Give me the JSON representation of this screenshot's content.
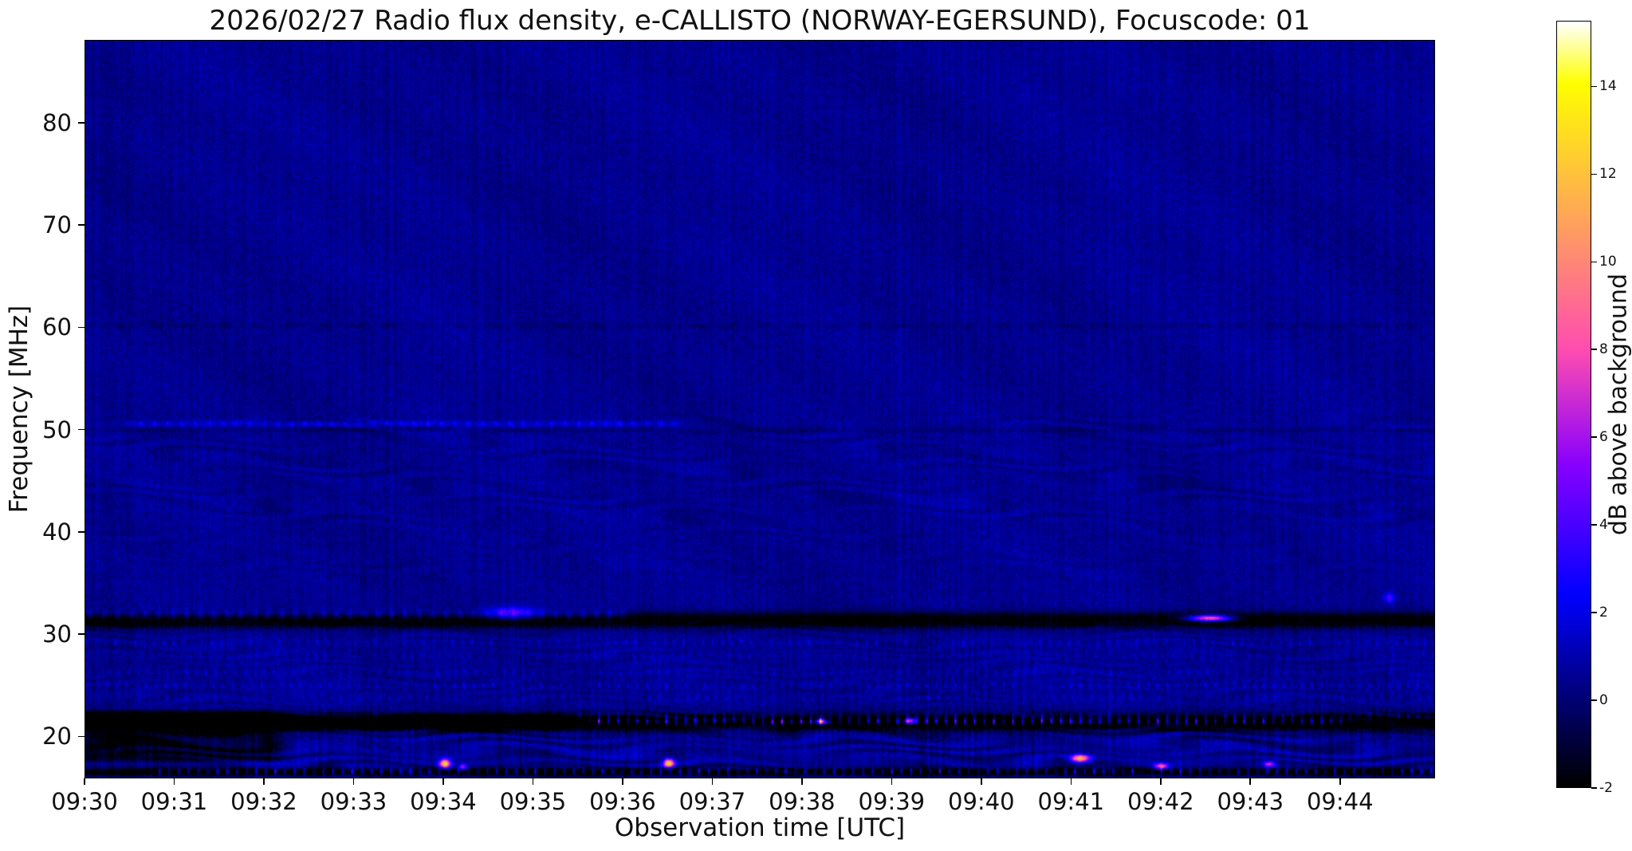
{
  "chart_data": {
    "type": "heatmap",
    "title": "2026/02/27  Radio flux density, e-CALLISTO (NORWAY-EGERSUND), Focuscode: 01",
    "xlabel": "Observation time [UTC]",
    "ylabel": "Frequency [MHz]",
    "x_ticks": [
      "09:30",
      "09:31",
      "09:32",
      "09:33",
      "09:34",
      "09:35",
      "09:36",
      "09:37",
      "09:38",
      "09:39",
      "09:40",
      "09:41",
      "09:42",
      "09:43",
      "09:44"
    ],
    "x_range_minutes": [
      0,
      15.06
    ],
    "y_ticks": [
      20,
      30,
      40,
      50,
      60,
      70,
      80
    ],
    "y_range": [
      15.9,
      88.1
    ],
    "grid": false,
    "colorbar": {
      "label": "dB above background",
      "ticks": [
        -2,
        0,
        2,
        4,
        6,
        8,
        10,
        12,
        14
      ],
      "range": [
        -2,
        15.5
      ],
      "colormap": "gnuplot2"
    },
    "features": {
      "background_db": 0.45,
      "noise_db": 0.5,
      "bright_lines": [
        {
          "freq": 50.65,
          "amp": 2.0,
          "t_start": 0.03,
          "t_end": 0.44,
          "width": 0.28,
          "style": "dashed"
        },
        {
          "freq": 32.0,
          "amp": 2.2,
          "t_start": 0.0,
          "t_end": 0.4,
          "width": 0.45,
          "style": "dashed"
        },
        {
          "freq": 20.9,
          "amp": 2.6,
          "t_start": 0.0,
          "t_end": 0.145,
          "width": 0.3,
          "style": "dashed"
        }
      ],
      "dark_lines": [
        {
          "freq": 60.25,
          "amp": -0.6,
          "t_start": 0,
          "t_end": 1,
          "width": 0.25,
          "style": "dashed"
        },
        {
          "freq": 50.05,
          "amp": -0.5,
          "t_start": 0,
          "t_end": 1,
          "width": 0.2,
          "style": "solid"
        }
      ],
      "dark_bands": [
        {
          "freq": 31.4,
          "half_width": 0.75,
          "amp": -2.6,
          "t_start": 0.0,
          "t_end": 1.0
        },
        {
          "freq": 21.4,
          "half_width": 0.85,
          "amp": -2.8,
          "t_start": 0.0,
          "t_end": 1.0
        },
        {
          "freq": 16.55,
          "half_width": 0.4,
          "amp": -2.6,
          "t_start": 0.0,
          "t_end": 1.0
        }
      ],
      "dark_patches": [
        {
          "t0": 0.0,
          "t1": 0.145,
          "f_min": 17.6,
          "f_max": 22.5,
          "amp": -1.8
        },
        {
          "t0": 0.0,
          "t1": 0.36,
          "f_min": 20.6,
          "f_max": 22.3,
          "amp": -0.8
        }
      ],
      "speckle_rows": [
        {
          "freq": 29.2,
          "amp": 1.3,
          "t_start": 0.0,
          "t_end": 1.0
        },
        {
          "freq": 27.9,
          "amp": 0.8,
          "t_start": 0.0,
          "t_end": 1.0
        },
        {
          "freq": 26.3,
          "amp": 1.1,
          "t_start": 0.0,
          "t_end": 1.0
        },
        {
          "freq": 25.0,
          "amp": 1.4,
          "t_start": 0.0,
          "t_end": 1.0
        },
        {
          "freq": 23.8,
          "amp": 0.9,
          "t_start": 0.0,
          "t_end": 1.0
        },
        {
          "freq": 22.0,
          "amp": 2.2,
          "t_start": 0.36,
          "t_end": 1.0
        },
        {
          "freq": 21.5,
          "amp": 7.5,
          "t_start": 0.375,
          "t_end": 0.935
        },
        {
          "freq": 16.6,
          "amp": 5.0,
          "t_start": 0.05,
          "t_end": 1.0
        }
      ],
      "ripple_zones": [
        {
          "f_min": 41.0,
          "f_max": 51.5,
          "amp": 0.35,
          "wavelength": 1.6
        },
        {
          "f_min": 35.0,
          "f_max": 41.0,
          "amp": 0.18,
          "wavelength": 1.8
        },
        {
          "f_min": 22.5,
          "f_max": 31.5,
          "amp": 0.3,
          "wavelength": 0.9
        },
        {
          "f_min": 16.2,
          "f_max": 22.5,
          "amp": 0.85,
          "wavelength": 1.15
        }
      ],
      "hotspots": [
        {
          "t": 0.266,
          "f": 17.35,
          "amp": 12.5,
          "wt": 0.004,
          "wf": 0.45
        },
        {
          "t": 0.279,
          "f": 17.0,
          "amp": 6.0,
          "wt": 0.003,
          "wf": 0.3
        },
        {
          "t": 0.432,
          "f": 17.4,
          "amp": 12.5,
          "wt": 0.004,
          "wf": 0.45
        },
        {
          "t": 0.315,
          "f": 32.1,
          "amp": 4.0,
          "wt": 0.018,
          "wf": 0.6
        },
        {
          "t": 0.545,
          "f": 21.5,
          "amp": 10.0,
          "wt": 0.004,
          "wf": 0.3
        },
        {
          "t": 0.611,
          "f": 21.55,
          "amp": 9.0,
          "wt": 0.004,
          "wf": 0.3
        },
        {
          "t": 0.737,
          "f": 17.85,
          "amp": 12.0,
          "wt": 0.007,
          "wf": 0.35
        },
        {
          "t": 0.797,
          "f": 17.1,
          "amp": 8.5,
          "wt": 0.005,
          "wf": 0.3
        },
        {
          "t": 0.833,
          "f": 31.6,
          "amp": 10.5,
          "wt": 0.016,
          "wf": 0.3
        },
        {
          "t": 0.877,
          "f": 17.3,
          "amp": 7.0,
          "wt": 0.004,
          "wf": 0.3
        },
        {
          "t": 0.966,
          "f": 33.6,
          "amp": 3.5,
          "wt": 0.004,
          "wf": 0.5
        }
      ]
    }
  }
}
